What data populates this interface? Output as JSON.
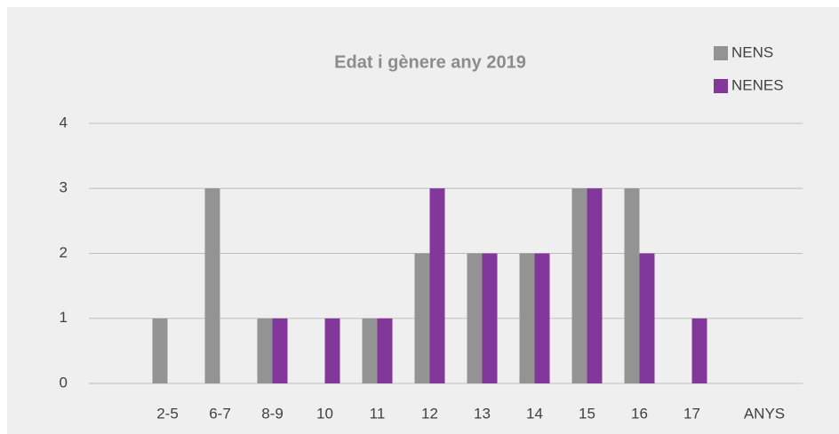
{
  "chart_data": {
    "type": "bar",
    "title": "Edat i gènere any 2019",
    "categories": [
      null,
      "2-5",
      "6-7",
      "8-9",
      "10",
      "11",
      "12",
      "13",
      "14",
      "15",
      "16",
      "17"
    ],
    "x_label": "ANYS",
    "series": [
      {
        "name": "NENS",
        "color": "#939393",
        "values": [
          null,
          1,
          3,
          1,
          0,
          1,
          2,
          2,
          2,
          3,
          3,
          0
        ]
      },
      {
        "name": "NENES",
        "color": "#82389b",
        "values": [
          null,
          0,
          0,
          1,
          1,
          1,
          3,
          2,
          2,
          3,
          2,
          1
        ]
      }
    ],
    "ylim": [
      0,
      4
    ],
    "yticks": [
      0,
      1,
      2,
      3,
      4
    ],
    "grid": true,
    "legend": "top-right"
  }
}
